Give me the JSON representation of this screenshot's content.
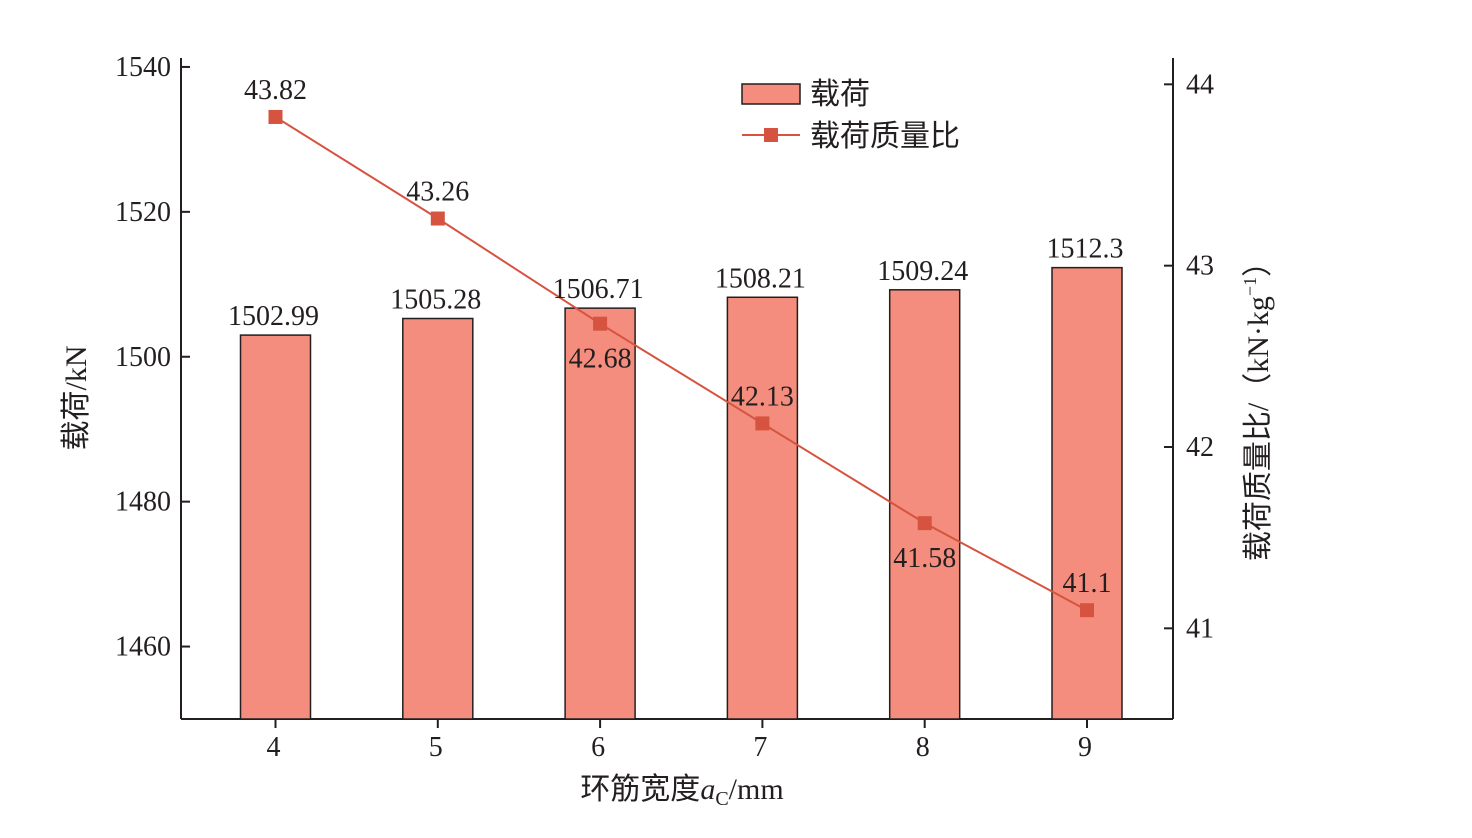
{
  "chart_data": {
    "type": "bar",
    "categories": [
      "4",
      "5",
      "6",
      "7",
      "8",
      "9"
    ],
    "series": [
      {
        "name": "载荷",
        "type": "bar",
        "axis": "left",
        "values": [
          1502.99,
          1505.28,
          1506.71,
          1508.21,
          1509.24,
          1512.3
        ],
        "labels": [
          "1502.99",
          "1505.28",
          "1506.71",
          "1508.21",
          "1509.24",
          "1512.3"
        ]
      },
      {
        "name": "载荷质量比",
        "type": "line",
        "axis": "right",
        "values": [
          43.82,
          43.26,
          42.68,
          42.13,
          41.58,
          41.1
        ],
        "labels": [
          "43.82",
          "43.26",
          "42.68",
          "42.13",
          "41.58",
          "41.1"
        ]
      }
    ],
    "xlabel": {
      "main": "环筋宽度",
      "var": "a",
      "sub": "C",
      "unit": "/mm"
    },
    "ylabel_left": "载荷/kN",
    "ylabel_right": "载荷质量比/（kN·kg",
    "ylabel_right_sup": "−1",
    "ylabel_right_close": "）",
    "ylim_left": [
      1450,
      1540
    ],
    "yticks_left": [
      1460,
      1480,
      1500,
      1520,
      1540
    ],
    "ylim_right": [
      40.5,
      44
    ],
    "yticks_right": [
      41,
      42,
      43,
      44
    ],
    "legend_position": "top-center",
    "grid": false,
    "colors": {
      "bar_fill": "#f48d7d",
      "bar_stroke": "#231f20",
      "line": "#d6533f",
      "marker": "#d6533f",
      "axis": "#231f20"
    }
  }
}
